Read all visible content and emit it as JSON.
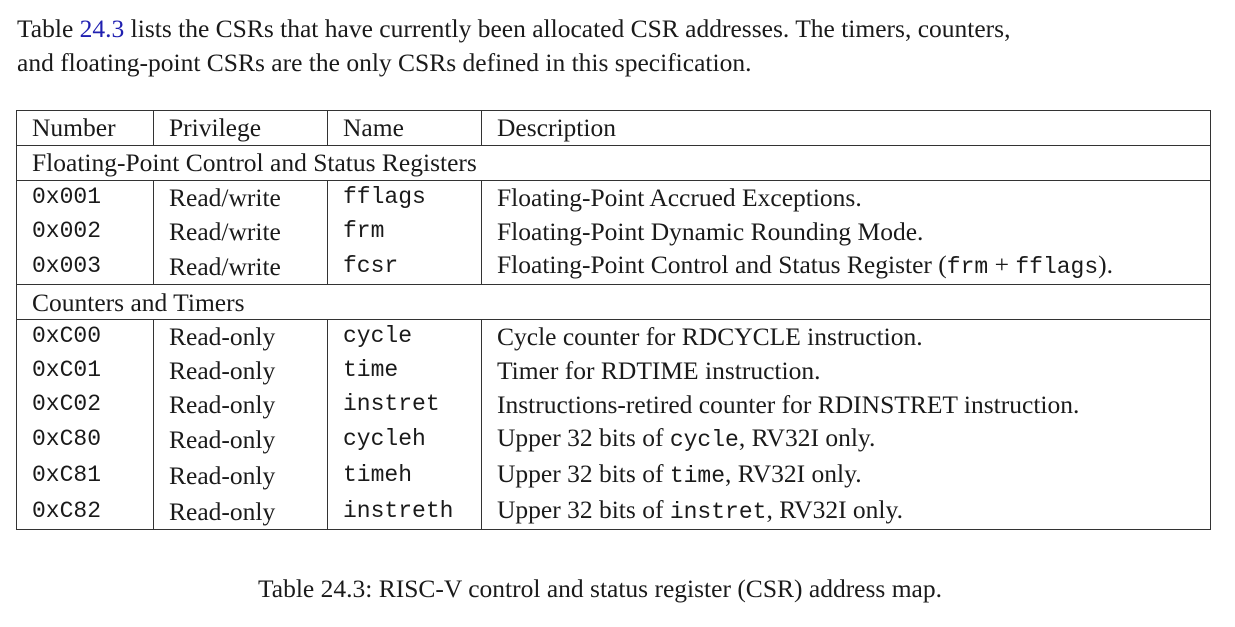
{
  "intro": {
    "before_ref": "Table ",
    "ref": "24.3",
    "after_ref": " lists the CSRs that have currently been allocated CSR addresses. The timers, counters,",
    "line2": "and floating-point CSRs are the only CSRs defined in this specification."
  },
  "table": {
    "headers": [
      "Number",
      "Privilege",
      "Name",
      "Description"
    ],
    "groups": [
      {
        "title": "Floating-Point Control and Status Registers",
        "rows": [
          {
            "number": "0x001",
            "privilege": "Read/write",
            "name": "fflags",
            "desc": [
              {
                "t": "Floating-Point Accrued Exceptions.",
                "m": false
              }
            ]
          },
          {
            "number": "0x002",
            "privilege": "Read/write",
            "name": "frm",
            "desc": [
              {
                "t": "Floating-Point Dynamic Rounding Mode.",
                "m": false
              }
            ]
          },
          {
            "number": "0x003",
            "privilege": "Read/write",
            "name": "fcsr",
            "desc": [
              {
                "t": "Floating-Point Control and Status Register (",
                "m": false
              },
              {
                "t": "frm",
                "m": true
              },
              {
                "t": " + ",
                "m": false
              },
              {
                "t": "fflags",
                "m": true
              },
              {
                "t": ").",
                "m": false
              }
            ]
          }
        ]
      },
      {
        "title": "Counters and Timers",
        "rows": [
          {
            "number": "0xC00",
            "privilege": "Read-only",
            "name": "cycle",
            "desc": [
              {
                "t": "Cycle counter for RDCYCLE instruction.",
                "m": false
              }
            ]
          },
          {
            "number": "0xC01",
            "privilege": "Read-only",
            "name": "time",
            "desc": [
              {
                "t": "Timer for RDTIME instruction.",
                "m": false
              }
            ]
          },
          {
            "number": "0xC02",
            "privilege": "Read-only",
            "name": "instret",
            "desc": [
              {
                "t": "Instructions-retired counter for RDINSTRET instruction.",
                "m": false
              }
            ]
          },
          {
            "number": "0xC80",
            "privilege": "Read-only",
            "name": "cycleh",
            "desc": [
              {
                "t": "Upper 32 bits of ",
                "m": false
              },
              {
                "t": "cycle",
                "m": true
              },
              {
                "t": ", RV32I only.",
                "m": false
              }
            ]
          },
          {
            "number": "0xC81",
            "privilege": "Read-only",
            "name": "timeh",
            "desc": [
              {
                "t": "Upper 32 bits of ",
                "m": false
              },
              {
                "t": "time",
                "m": true
              },
              {
                "t": ", RV32I only.",
                "m": false
              }
            ]
          },
          {
            "number": "0xC82",
            "privilege": "Read-only",
            "name": "instreth",
            "desc": [
              {
                "t": "Upper 32 bits of ",
                "m": false
              },
              {
                "t": "instret",
                "m": true
              },
              {
                "t": ", RV32I only.",
                "m": false
              }
            ]
          }
        ]
      }
    ]
  },
  "caption": "Table 24.3: RISC-V control and status register (CSR) address map."
}
